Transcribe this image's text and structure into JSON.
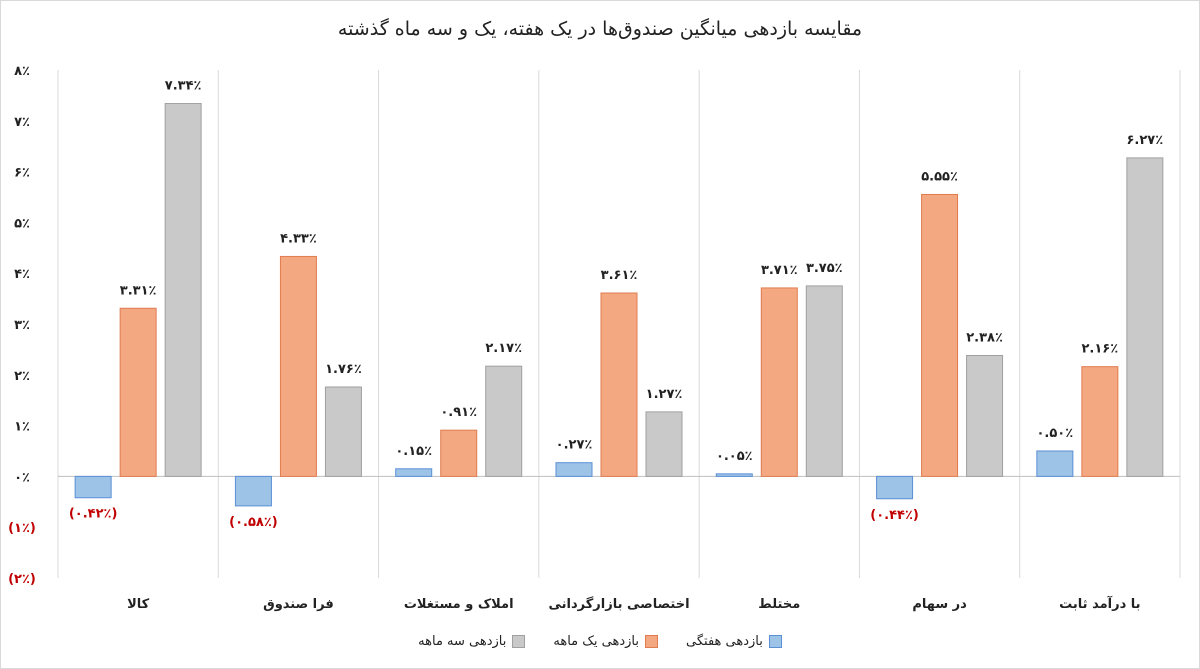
{
  "chart_data": {
    "type": "bar",
    "title": "مقایسه بازدهی میانگین صندوق‌ها در یک هفته، یک و سه ماه گذشته",
    "categories": [
      "کالا",
      "فرا صندوق",
      "املاک و مستغلات",
      "اختصاصی بازارگردانی",
      "مختلط",
      "در سهام",
      "با درآمد ثابت"
    ],
    "series": [
      {
        "name": "بازدهی هفتگی",
        "color": "#9dc3e6",
        "values": [
          -0.42,
          -0.58,
          0.15,
          0.27,
          0.05,
          -0.44,
          0.5
        ],
        "labels": [
          "(۰.۴۲٪)",
          "(۰.۵۸٪)",
          "۰.۱۵٪",
          "۰.۲۷٪",
          "۰.۰۵٪",
          "(۰.۴۴٪)",
          "۰.۵۰٪"
        ]
      },
      {
        "name": "بازدهی یک ماهه",
        "color": "#f4a882",
        "values": [
          3.31,
          4.33,
          0.91,
          3.61,
          3.71,
          5.55,
          2.16
        ],
        "labels": [
          "۳.۳۱٪",
          "۴.۳۳٪",
          "۰.۹۱٪",
          "۳.۶۱٪",
          "۳.۷۱٪",
          "۵.۵۵٪",
          "۲.۱۶٪"
        ]
      },
      {
        "name": "بازدهی سه ماهه",
        "color": "#c9c9c9",
        "values": [
          7.34,
          1.76,
          2.17,
          1.27,
          3.75,
          2.38,
          6.27
        ],
        "labels": [
          "۷.۳۴٪",
          "۱.۷۶٪",
          "۲.۱۷٪",
          "۱.۲۷٪",
          "۳.۷۵٪",
          "۲.۳۸٪",
          "۶.۲۷٪"
        ]
      }
    ],
    "ylim": [
      -2,
      8
    ],
    "yticks": [
      8,
      7,
      6,
      5,
      4,
      3,
      2,
      1,
      0,
      -1,
      -2
    ],
    "ytick_labels": [
      "۸٪",
      "۷٪",
      "۶٪",
      "۵٪",
      "۴٪",
      "۳٪",
      "۲٪",
      "۱٪",
      "۰٪",
      "(۱٪)",
      "(۲٪)"
    ],
    "grid": false,
    "legend": "bottom"
  }
}
